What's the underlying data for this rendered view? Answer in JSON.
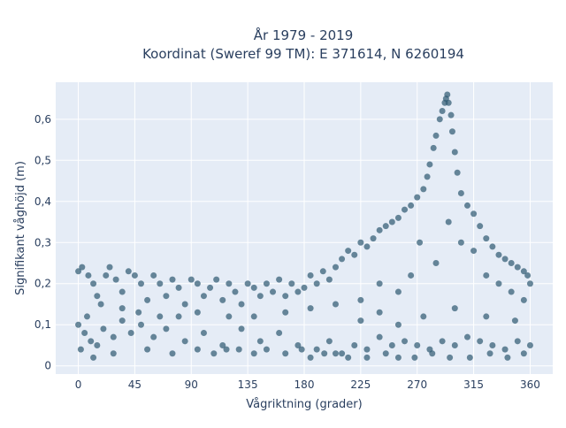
{
  "chart_data": {
    "type": "scatter",
    "title": "År 1979 - 2019",
    "subtitle": "Koordinat (Sweref 99 TM): E 371614, N 6260194",
    "xlabel": "Vågriktning (grader)",
    "ylabel": "Signifikant våghöjd (m)",
    "xlim": [
      -18,
      378
    ],
    "ylim": [
      -0.02,
      0.69
    ],
    "x_ticks": [
      0,
      45,
      90,
      135,
      180,
      225,
      270,
      315,
      360
    ],
    "x_tick_labels": [
      "0",
      "45",
      "90",
      "135",
      "180",
      "225",
      "270",
      "315",
      "360"
    ],
    "y_ticks": [
      0,
      0.1,
      0.2,
      0.3,
      0.4,
      0.5,
      0.6
    ],
    "y_tick_labels": [
      "0",
      "0,1",
      "0,2",
      "0,3",
      "0,4",
      "0,5",
      "0,6"
    ],
    "grid": true,
    "legend": "none",
    "colors": {
      "background": "#e5ecf6",
      "grid": "#ffffff",
      "marker": "#2e5970",
      "text": "#2a3f5f"
    },
    "series": [
      {
        "marker_opacity": 0.7,
        "points": [
          [
            0,
            0.23
          ],
          [
            3,
            0.24
          ],
          [
            8,
            0.22
          ],
          [
            12,
            0.2
          ],
          [
            15,
            0.17
          ],
          [
            18,
            0.15
          ],
          [
            22,
            0.22
          ],
          [
            25,
            0.24
          ],
          [
            30,
            0.21
          ],
          [
            35,
            0.18
          ],
          [
            40,
            0.23
          ],
          [
            45,
            0.22
          ],
          [
            50,
            0.2
          ],
          [
            55,
            0.16
          ],
          [
            60,
            0.22
          ],
          [
            65,
            0.2
          ],
          [
            70,
            0.17
          ],
          [
            75,
            0.21
          ],
          [
            80,
            0.19
          ],
          [
            85,
            0.15
          ],
          [
            90,
            0.21
          ],
          [
            95,
            0.2
          ],
          [
            100,
            0.17
          ],
          [
            105,
            0.19
          ],
          [
            110,
            0.21
          ],
          [
            115,
            0.16
          ],
          [
            120,
            0.2
          ],
          [
            125,
            0.18
          ],
          [
            130,
            0.15
          ],
          [
            135,
            0.2
          ],
          [
            140,
            0.19
          ],
          [
            145,
            0.17
          ],
          [
            150,
            0.2
          ],
          [
            155,
            0.18
          ],
          [
            160,
            0.21
          ],
          [
            165,
            0.17
          ],
          [
            170,
            0.2
          ],
          [
            175,
            0.18
          ],
          [
            180,
            0.19
          ],
          [
            185,
            0.22
          ],
          [
            190,
            0.2
          ],
          [
            195,
            0.23
          ],
          [
            200,
            0.21
          ],
          [
            205,
            0.24
          ],
          [
            210,
            0.26
          ],
          [
            215,
            0.28
          ],
          [
            220,
            0.27
          ],
          [
            225,
            0.3
          ],
          [
            230,
            0.29
          ],
          [
            235,
            0.31
          ],
          [
            240,
            0.33
          ],
          [
            245,
            0.34
          ],
          [
            250,
            0.35
          ],
          [
            255,
            0.36
          ],
          [
            260,
            0.38
          ],
          [
            265,
            0.39
          ],
          [
            270,
            0.41
          ],
          [
            275,
            0.43
          ],
          [
            278,
            0.46
          ],
          [
            280,
            0.49
          ],
          [
            283,
            0.53
          ],
          [
            285,
            0.56
          ],
          [
            288,
            0.6
          ],
          [
            290,
            0.62
          ],
          [
            292,
            0.64
          ],
          [
            293,
            0.65
          ],
          [
            294,
            0.66
          ],
          [
            295,
            0.64
          ],
          [
            297,
            0.61
          ],
          [
            298,
            0.57
          ],
          [
            300,
            0.52
          ],
          [
            302,
            0.47
          ],
          [
            305,
            0.42
          ],
          [
            310,
            0.39
          ],
          [
            315,
            0.37
          ],
          [
            320,
            0.34
          ],
          [
            325,
            0.31
          ],
          [
            330,
            0.29
          ],
          [
            335,
            0.27
          ],
          [
            340,
            0.26
          ],
          [
            345,
            0.25
          ],
          [
            350,
            0.24
          ],
          [
            355,
            0.23
          ],
          [
            358,
            0.22
          ],
          [
            360,
            0.2
          ],
          [
            0,
            0.1
          ],
          [
            5,
            0.08
          ],
          [
            10,
            0.06
          ],
          [
            2,
            0.04
          ],
          [
            7,
            0.12
          ],
          [
            15,
            0.05
          ],
          [
            20,
            0.09
          ],
          [
            28,
            0.07
          ],
          [
            35,
            0.11
          ],
          [
            42,
            0.08
          ],
          [
            50,
            0.1
          ],
          [
            60,
            0.07
          ],
          [
            70,
            0.09
          ],
          [
            85,
            0.06
          ],
          [
            100,
            0.08
          ],
          [
            115,
            0.05
          ],
          [
            130,
            0.09
          ],
          [
            145,
            0.06
          ],
          [
            160,
            0.08
          ],
          [
            175,
            0.05
          ],
          [
            190,
            0.04
          ],
          [
            200,
            0.06
          ],
          [
            210,
            0.03
          ],
          [
            220,
            0.05
          ],
          [
            230,
            0.04
          ],
          [
            240,
            0.07
          ],
          [
            250,
            0.05
          ],
          [
            260,
            0.06
          ],
          [
            270,
            0.05
          ],
          [
            280,
            0.04
          ],
          [
            290,
            0.06
          ],
          [
            300,
            0.05
          ],
          [
            310,
            0.07
          ],
          [
            320,
            0.06
          ],
          [
            330,
            0.05
          ],
          [
            340,
            0.04
          ],
          [
            350,
            0.06
          ],
          [
            360,
            0.05
          ],
          [
            12,
            0.02
          ],
          [
            28,
            0.03
          ],
          [
            55,
            0.04
          ],
          [
            75,
            0.03
          ],
          [
            95,
            0.04
          ],
          [
            108,
            0.03
          ],
          [
            118,
            0.04
          ],
          [
            128,
            0.04
          ],
          [
            140,
            0.03
          ],
          [
            150,
            0.04
          ],
          [
            165,
            0.03
          ],
          [
            178,
            0.04
          ],
          [
            185,
            0.02
          ],
          [
            196,
            0.03
          ],
          [
            205,
            0.03
          ],
          [
            215,
            0.02
          ],
          [
            230,
            0.02
          ],
          [
            245,
            0.03
          ],
          [
            255,
            0.02
          ],
          [
            268,
            0.02
          ],
          [
            282,
            0.03
          ],
          [
            296,
            0.02
          ],
          [
            312,
            0.02
          ],
          [
            328,
            0.03
          ],
          [
            342,
            0.02
          ],
          [
            355,
            0.03
          ],
          [
            35,
            0.14
          ],
          [
            48,
            0.13
          ],
          [
            65,
            0.12
          ],
          [
            80,
            0.12
          ],
          [
            95,
            0.13
          ],
          [
            120,
            0.12
          ],
          [
            140,
            0.12
          ],
          [
            165,
            0.13
          ],
          [
            185,
            0.14
          ],
          [
            205,
            0.15
          ],
          [
            225,
            0.16
          ],
          [
            240,
            0.2
          ],
          [
            255,
            0.18
          ],
          [
            265,
            0.22
          ],
          [
            272,
            0.3
          ],
          [
            285,
            0.25
          ],
          [
            295,
            0.35
          ],
          [
            305,
            0.3
          ],
          [
            315,
            0.28
          ],
          [
            325,
            0.22
          ],
          [
            335,
            0.2
          ],
          [
            345,
            0.18
          ],
          [
            355,
            0.16
          ],
          [
            225,
            0.11
          ],
          [
            240,
            0.13
          ],
          [
            255,
            0.1
          ],
          [
            275,
            0.12
          ],
          [
            300,
            0.14
          ],
          [
            325,
            0.12
          ],
          [
            348,
            0.11
          ]
        ]
      }
    ]
  }
}
